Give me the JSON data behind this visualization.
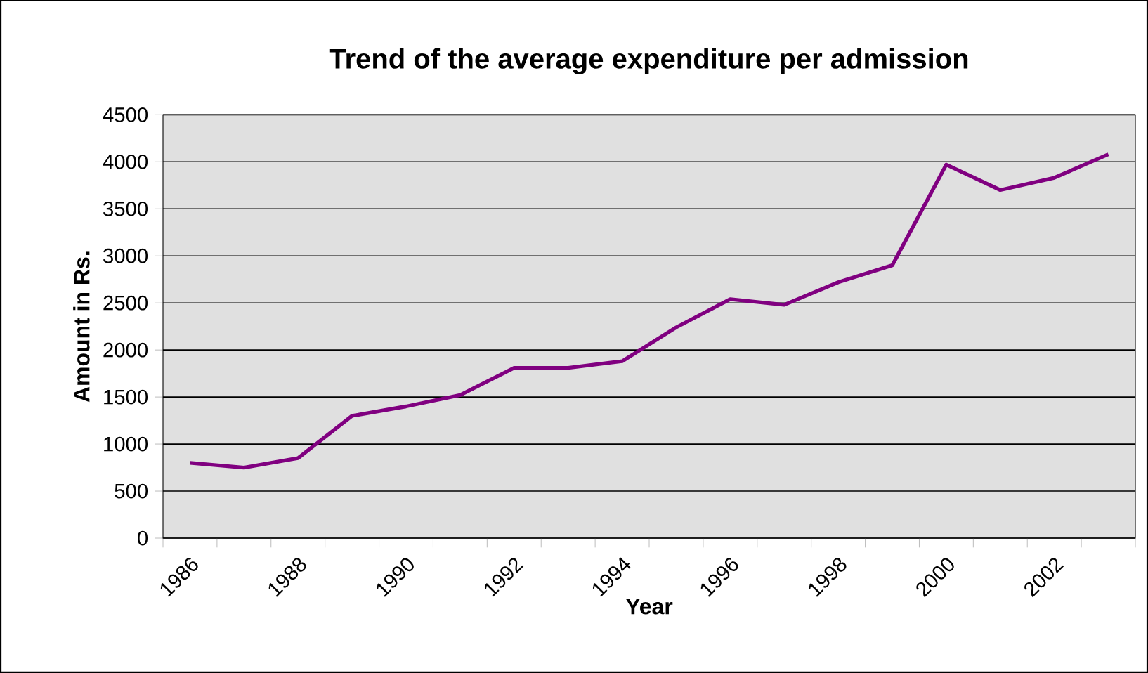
{
  "chart_data": {
    "type": "line",
    "title": "Trend of the average expenditure per admission",
    "xlabel": "Year",
    "ylabel": "Amount in Rs.",
    "categories": [
      "1986",
      null,
      "1988",
      null,
      "1990",
      null,
      "1992",
      null,
      "1994",
      null,
      "1996",
      null,
      "1998",
      null,
      "2000",
      null,
      "2002",
      null
    ],
    "values": [
      800,
      750,
      850,
      1300,
      1400,
      1520,
      1810,
      1810,
      1880,
      2240,
      2540,
      2480,
      2720,
      2900,
      3970,
      3700,
      3830,
      4080
    ],
    "color": "#800080",
    "ylim": [
      0,
      4500
    ],
    "yticks": [
      0,
      500,
      1000,
      1500,
      2000,
      2500,
      3000,
      3500,
      4000,
      4500
    ],
    "grid": "y",
    "marker": "none",
    "line_style": "solid"
  }
}
